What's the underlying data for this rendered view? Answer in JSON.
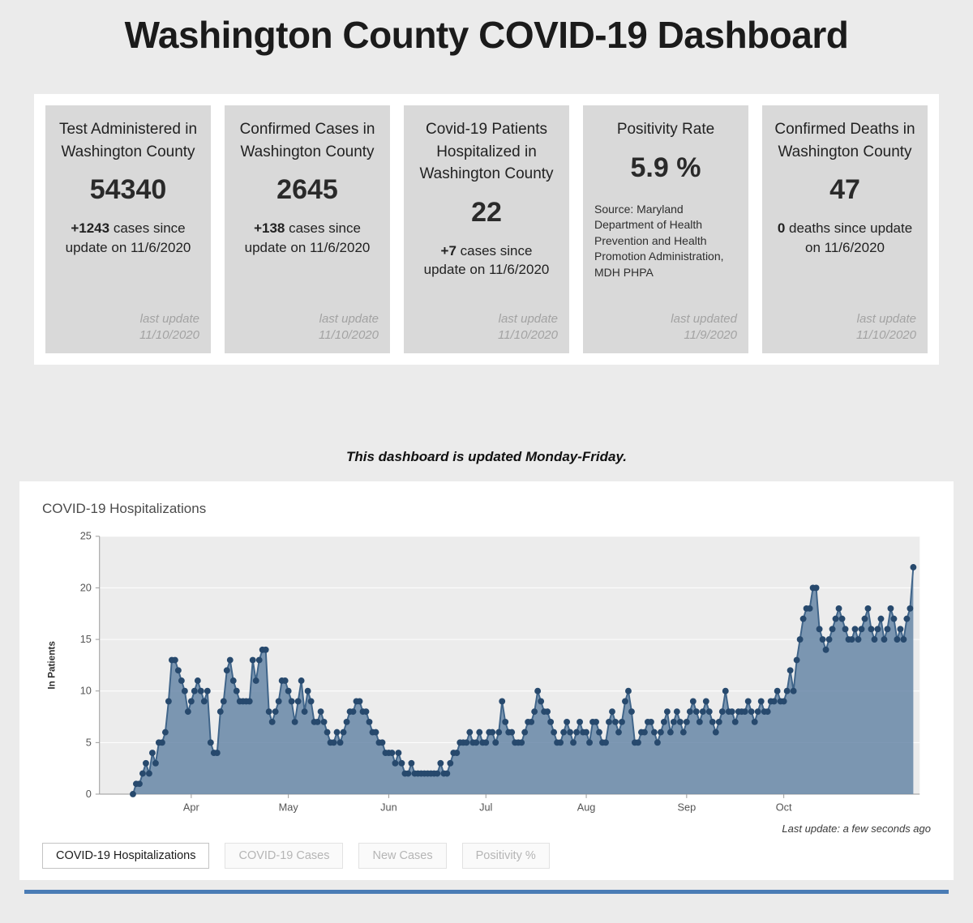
{
  "page": {
    "title": "Washington County COVID-19 Dashboard",
    "update_note": "This dashboard is updated Monday-Friday."
  },
  "cards": [
    {
      "title": "Test Administered in Washington County",
      "value": "54340",
      "delta_value": "+1243",
      "delta_text": " cases since update on 11/6/2020",
      "last_update_label": "last update",
      "last_update_date": "11/10/2020"
    },
    {
      "title": "Confirmed Cases in Washington County",
      "value": "2645",
      "delta_value": "+138",
      "delta_text": " cases since update on 11/6/2020",
      "last_update_label": "last update",
      "last_update_date": "11/10/2020"
    },
    {
      "title": "Covid-19 Patients Hospitalized in Washington County",
      "value": "22",
      "delta_value": "+7",
      "delta_text": " cases since update on 11/6/2020",
      "last_update_label": "last update",
      "last_update_date": "11/10/2020"
    },
    {
      "title": "Positivity Rate",
      "value": "5.9 %",
      "source_text": "Source: Maryland Department of Health Prevention and Health Promotion Administration, MDH PHPA",
      "last_update_label": "last updated",
      "last_update_date": "11/9/2020"
    },
    {
      "title": "Confirmed Deaths in Washington County",
      "value": "47",
      "delta_value": "0",
      "delta_text": " deaths since update on 11/6/2020",
      "last_update_label": "last update",
      "last_update_date": "11/10/2020"
    }
  ],
  "chart_panel": {
    "title": "COVID-19 Hospitalizations",
    "last_update": "Last update: a few seconds ago",
    "tabs": [
      {
        "label": "COVID-19 Hospitalizations",
        "active": true
      },
      {
        "label": "COVID-19 Cases",
        "active": false
      },
      {
        "label": "New Cases",
        "active": false
      },
      {
        "label": "Positivity %",
        "active": false
      }
    ]
  },
  "chart_data": {
    "type": "area",
    "title": "COVID-19 Hospitalizations",
    "xlabel": "",
    "ylabel": "In Patients",
    "ylim": [
      0,
      25
    ],
    "yticks": [
      0,
      5,
      10,
      15,
      20,
      25
    ],
    "grid": "horizontal",
    "legend": "none",
    "x_unit": "daily",
    "x_start_label": "mid-March 2020",
    "x_tick_labels": [
      {
        "label": "Apr",
        "index": 18
      },
      {
        "label": "May",
        "index": 48
      },
      {
        "label": "Jun",
        "index": 79
      },
      {
        "label": "Jul",
        "index": 109
      },
      {
        "label": "Aug",
        "index": 140
      },
      {
        "label": "Sep",
        "index": 171
      },
      {
        "label": "Oct",
        "index": 201
      }
    ],
    "values": [
      0,
      1,
      1,
      2,
      3,
      2,
      4,
      3,
      5,
      5,
      6,
      9,
      13,
      13,
      12,
      11,
      10,
      8,
      9,
      10,
      11,
      10,
      9,
      10,
      5,
      4,
      4,
      8,
      9,
      12,
      13,
      11,
      10,
      9,
      9,
      9,
      9,
      13,
      11,
      13,
      14,
      14,
      8,
      7,
      8,
      9,
      11,
      11,
      10,
      9,
      7,
      9,
      11,
      8,
      10,
      9,
      7,
      7,
      8,
      7,
      6,
      5,
      5,
      6,
      5,
      6,
      7,
      8,
      8,
      9,
      9,
      8,
      8,
      7,
      6,
      6,
      5,
      5,
      4,
      4,
      4,
      3,
      4,
      3,
      2,
      2,
      3,
      2,
      2,
      2,
      2,
      2,
      2,
      2,
      2,
      3,
      2,
      2,
      3,
      4,
      4,
      5,
      5,
      5,
      6,
      5,
      5,
      6,
      5,
      5,
      6,
      6,
      5,
      6,
      9,
      7,
      6,
      6,
      5,
      5,
      5,
      6,
      7,
      7,
      8,
      10,
      9,
      8,
      8,
      7,
      6,
      5,
      5,
      6,
      7,
      6,
      5,
      6,
      7,
      6,
      6,
      5,
      7,
      7,
      6,
      5,
      5,
      7,
      8,
      7,
      6,
      7,
      9,
      10,
      8,
      5,
      5,
      6,
      6,
      7,
      7,
      6,
      5,
      6,
      7,
      8,
      6,
      7,
      8,
      7,
      6,
      7,
      8,
      9,
      8,
      7,
      8,
      9,
      8,
      7,
      6,
      7,
      8,
      10,
      8,
      8,
      7,
      8,
      8,
      8,
      9,
      8,
      7,
      8,
      9,
      8,
      8,
      9,
      9,
      10,
      9,
      9,
      10,
      12,
      10,
      13,
      15,
      17,
      18,
      18,
      20,
      20,
      16,
      15,
      14,
      15,
      16,
      17,
      18,
      17,
      16,
      15,
      15,
      16,
      15,
      16,
      17,
      18,
      16,
      15,
      16,
      17,
      15,
      16,
      18,
      17,
      15,
      16,
      15,
      17,
      18,
      22
    ],
    "colors": {
      "fill": "#6787a7",
      "line": "#3f6489",
      "marker": "#27496d",
      "plot_bg": "#ececec",
      "axis": "#999999",
      "tick_text": "#555555"
    }
  }
}
